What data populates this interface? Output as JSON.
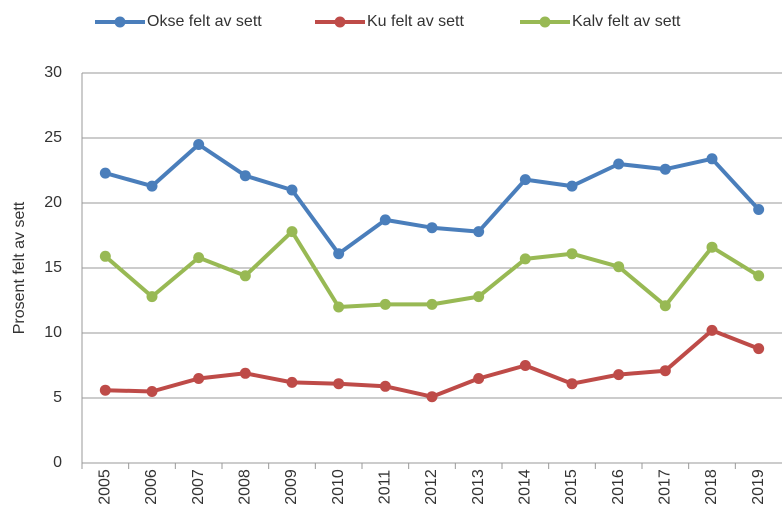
{
  "chart_data": {
    "type": "line",
    "y_label": "Prosent felt av sett",
    "categories": [
      "2005",
      "2006",
      "2007",
      "2008",
      "2009",
      "2010",
      "2011",
      "2012",
      "2013",
      "2014",
      "2015",
      "2016",
      "2017",
      "2018",
      "2019"
    ],
    "series": [
      {
        "name": "Okse felt av sett",
        "color": "#4a7ebb",
        "values": [
          22.3,
          21.3,
          24.5,
          22.1,
          21.0,
          16.1,
          18.7,
          18.1,
          17.8,
          21.8,
          21.3,
          23.0,
          22.6,
          23.4,
          19.5
        ]
      },
      {
        "name": "Ku felt av sett",
        "color": "#be4b48",
        "values": [
          5.6,
          5.5,
          6.5,
          6.9,
          6.2,
          6.1,
          5.9,
          5.1,
          6.5,
          7.5,
          6.1,
          6.8,
          7.1,
          10.2,
          8.8
        ]
      },
      {
        "name": "Kalv felt av sett",
        "color": "#98b954",
        "values": [
          15.9,
          12.8,
          15.8,
          14.4,
          17.8,
          12.0,
          12.2,
          12.2,
          12.8,
          15.7,
          16.1,
          15.1,
          12.1,
          16.6,
          14.4
        ]
      }
    ],
    "ylim": [
      0,
      30
    ],
    "yticks": [
      0,
      5,
      10,
      15,
      20,
      25,
      30
    ],
    "grid": true
  }
}
